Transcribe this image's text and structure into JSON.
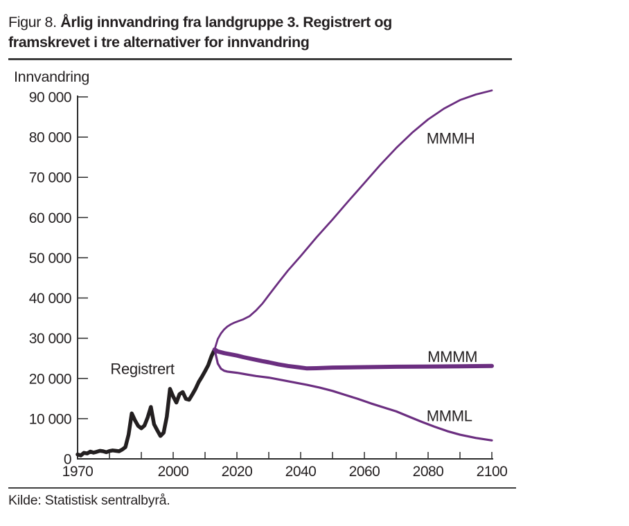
{
  "figure": {
    "label_prefix": "Figur 8.",
    "title_line1": "Årlig innvandring fra landgruppe 3. Registrert og",
    "title_line2": "framskrevet i tre alternativer for innvandring",
    "source": "Kilde: Statistisk sentralbyrå."
  },
  "colors": {
    "purple": "#6b2e80",
    "black": "#231f20",
    "rule": "#3d3d3d",
    "axis": "#2b2b2b"
  },
  "chart_data": {
    "type": "line",
    "title": "Årlig innvandring fra landgruppe 3. Registrert og framskrevet i tre alternativer for innvandring",
    "xlabel": "",
    "ylabel": "Innvandring",
    "xlim": [
      1970,
      2100
    ],
    "ylim": [
      0,
      90000
    ],
    "grid": false,
    "legend_position": "inline-labels",
    "x_tick_step": 10,
    "x_tick_labels": [
      "1970",
      "2000",
      "2020",
      "2040",
      "2060",
      "2080",
      "2100"
    ],
    "y_ticks": [
      {
        "value": 0,
        "label": "0"
      },
      {
        "value": 10000,
        "label": "10 000"
      },
      {
        "value": 20000,
        "label": "20 000"
      },
      {
        "value": 30000,
        "label": "30 000"
      },
      {
        "value": 40000,
        "label": "40 000"
      },
      {
        "value": 50000,
        "label": "50 000"
      },
      {
        "value": 60000,
        "label": "60 000"
      },
      {
        "value": 70000,
        "label": "70 000"
      },
      {
        "value": 80000,
        "label": "80 000"
      },
      {
        "value": 90000,
        "label": "90 000"
      }
    ],
    "series": [
      {
        "name": "Registrert",
        "color": "#231f20",
        "stroke_width": 5.5,
        "points": [
          [
            1970,
            1100
          ],
          [
            1971,
            850
          ],
          [
            1972,
            1500
          ],
          [
            1973,
            1350
          ],
          [
            1974,
            1800
          ],
          [
            1975,
            1550
          ],
          [
            1976,
            1750
          ],
          [
            1977,
            2000
          ],
          [
            1978,
            1900
          ],
          [
            1979,
            1650
          ],
          [
            1980,
            1950
          ],
          [
            1981,
            2100
          ],
          [
            1982,
            2000
          ],
          [
            1983,
            1900
          ],
          [
            1984,
            2300
          ],
          [
            1985,
            2900
          ],
          [
            1986,
            6000
          ],
          [
            1987,
            11300
          ],
          [
            1988,
            9600
          ],
          [
            1989,
            8200
          ],
          [
            1990,
            7600
          ],
          [
            1991,
            8300
          ],
          [
            1992,
            10300
          ],
          [
            1993,
            12900
          ],
          [
            1994,
            8600
          ],
          [
            1995,
            7100
          ],
          [
            1996,
            5700
          ],
          [
            1997,
            6500
          ],
          [
            1998,
            10500
          ],
          [
            1999,
            17400
          ],
          [
            2000,
            15500
          ],
          [
            2001,
            14000
          ],
          [
            2002,
            16100
          ],
          [
            2003,
            16600
          ],
          [
            2004,
            14900
          ],
          [
            2005,
            14700
          ],
          [
            2006,
            16000
          ],
          [
            2007,
            17400
          ],
          [
            2008,
            19100
          ],
          [
            2009,
            20400
          ],
          [
            2010,
            21800
          ],
          [
            2011,
            23300
          ],
          [
            2012,
            25500
          ],
          [
            2013,
            27200
          ]
        ]
      },
      {
        "name": "MMMH",
        "color": "#6b2e80",
        "stroke_width": 2.8,
        "points": [
          [
            2013,
            27200
          ],
          [
            2014,
            29800
          ],
          [
            2015,
            31200
          ],
          [
            2016,
            32200
          ],
          [
            2017,
            32900
          ],
          [
            2018,
            33400
          ],
          [
            2019,
            33800
          ],
          [
            2020,
            34100
          ],
          [
            2021,
            34400
          ],
          [
            2022,
            34700
          ],
          [
            2024,
            35500
          ],
          [
            2026,
            36900
          ],
          [
            2028,
            38600
          ],
          [
            2030,
            40700
          ],
          [
            2033,
            43800
          ],
          [
            2036,
            46800
          ],
          [
            2040,
            50400
          ],
          [
            2045,
            55100
          ],
          [
            2050,
            59500
          ],
          [
            2055,
            64100
          ],
          [
            2060,
            68600
          ],
          [
            2065,
            73100
          ],
          [
            2070,
            77300
          ],
          [
            2075,
            81100
          ],
          [
            2080,
            84400
          ],
          [
            2085,
            87100
          ],
          [
            2090,
            89200
          ],
          [
            2095,
            90600
          ],
          [
            2100,
            91600
          ]
        ]
      },
      {
        "name": "MMMM",
        "color": "#6b2e80",
        "stroke_width": 6,
        "points": [
          [
            2013,
            27200
          ],
          [
            2014,
            26700
          ],
          [
            2016,
            26300
          ],
          [
            2018,
            26000
          ],
          [
            2020,
            25700
          ],
          [
            2022,
            25300
          ],
          [
            2025,
            24800
          ],
          [
            2028,
            24300
          ],
          [
            2030,
            24000
          ],
          [
            2033,
            23500
          ],
          [
            2036,
            23100
          ],
          [
            2039,
            22800
          ],
          [
            2042,
            22500
          ],
          [
            2045,
            22550
          ],
          [
            2050,
            22700
          ],
          [
            2060,
            22800
          ],
          [
            2070,
            22900
          ],
          [
            2080,
            22950
          ],
          [
            2090,
            23000
          ],
          [
            2100,
            23100
          ]
        ]
      },
      {
        "name": "MMML",
        "color": "#6b2e80",
        "stroke_width": 3.2,
        "points": [
          [
            2013,
            27200
          ],
          [
            2014,
            23700
          ],
          [
            2015,
            22400
          ],
          [
            2016,
            21900
          ],
          [
            2017,
            21700
          ],
          [
            2018,
            21600
          ],
          [
            2020,
            21400
          ],
          [
            2023,
            21000
          ],
          [
            2026,
            20600
          ],
          [
            2030,
            20200
          ],
          [
            2034,
            19600
          ],
          [
            2038,
            19000
          ],
          [
            2042,
            18400
          ],
          [
            2046,
            17700
          ],
          [
            2050,
            16900
          ],
          [
            2054,
            15900
          ],
          [
            2058,
            14900
          ],
          [
            2062,
            13800
          ],
          [
            2066,
            12800
          ],
          [
            2070,
            11800
          ],
          [
            2074,
            10500
          ],
          [
            2078,
            9200
          ],
          [
            2082,
            8000
          ],
          [
            2086,
            6900
          ],
          [
            2090,
            6000
          ],
          [
            2095,
            5200
          ],
          [
            2100,
            4600
          ]
        ]
      }
    ],
    "labels": [
      {
        "text": "Registrert",
        "x": 1980.3,
        "y": 21100
      },
      {
        "text": "MMMH",
        "x": 2079.5,
        "y": 78400
      },
      {
        "text": "MMMM",
        "x": 2079.8,
        "y": 24100
      },
      {
        "text": "MMML",
        "x": 2079.5,
        "y": 9400
      }
    ]
  }
}
